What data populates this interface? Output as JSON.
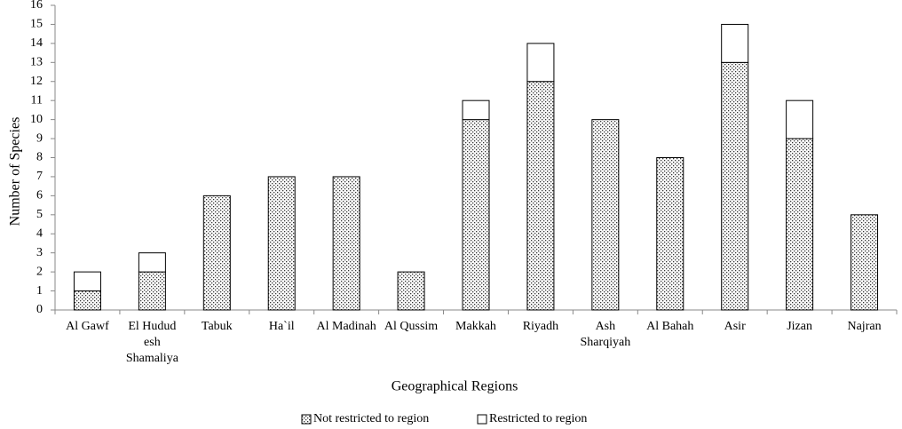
{
  "chart_data": {
    "type": "stacked-bar",
    "x_label": "Geographical Regions",
    "y_label": "Number of Species",
    "categories": [
      "Al Gawf",
      "El Hudud esh Shamaliya",
      "Tabuk",
      "Ha`il",
      "Al Madinah",
      "Al Qussim",
      "Makkah",
      "Riyadh",
      "Ash Sharqiyah",
      "Al Bahah",
      "Asir",
      "Jizan",
      "Najran"
    ],
    "series": [
      {
        "name": "Not restricted to region",
        "color": "#ffffff",
        "pattern": "dots",
        "values": [
          1,
          2,
          6,
          7,
          7,
          2,
          10,
          12,
          10,
          8,
          13,
          9,
          5
        ]
      },
      {
        "name": "Restricted to region",
        "color": "#ffffff",
        "pattern": "none",
        "values": [
          1,
          1,
          0,
          0,
          0,
          0,
          1,
          2,
          0,
          0,
          2,
          2,
          0
        ]
      }
    ],
    "ylim": [
      0,
      16
    ],
    "yticks": [
      0,
      1,
      2,
      3,
      4,
      5,
      6,
      7,
      8,
      9,
      10,
      11,
      12,
      13,
      14,
      15,
      16
    ],
    "grid": false,
    "legend": "bottom"
  }
}
